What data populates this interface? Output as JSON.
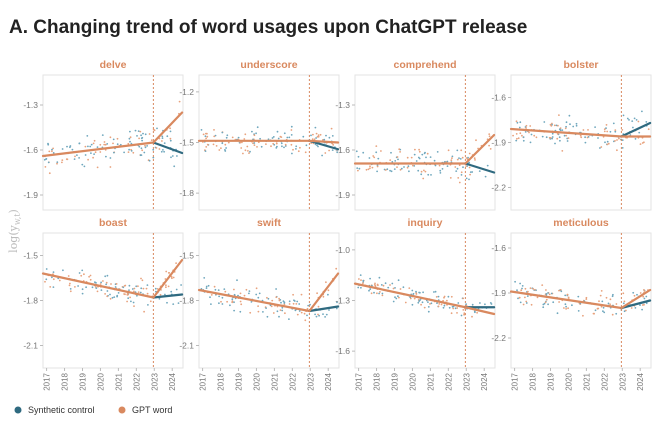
{
  "title": "A. Changing trend of word usages upon ChatGPT release",
  "legend": {
    "synthetic_label": "Synthetic control",
    "gpt_label": "GPT word"
  },
  "colors": {
    "synthetic": "#2f6a80",
    "gpt": "#d9895f",
    "dot_synthetic": "#6fa7bd",
    "dot_gpt": "#e8a27d"
  },
  "chart_data": {
    "type": "scatter+line",
    "ylabel": "log(y_w,t)",
    "ylabel_base": "log(y",
    "ylabel_sub": "w,t",
    "ylabel_close": ")",
    "x_ticks": [
      "2017",
      "2018",
      "2019",
      "2020",
      "2021",
      "2022",
      "2023",
      "2024"
    ],
    "xlim": [
      2016.8,
      2024.6
    ],
    "release": 2022.95,
    "panels": [
      {
        "word": "delve",
        "ylim": [
          -2.0,
          -1.1
        ],
        "ticks": [
          -1.3,
          -1.6,
          -1.9
        ],
        "tick_labels": [
          "-1.3",
          "-1.6",
          "-1.9"
        ],
        "pre": [
          [
            2016.8,
            -1.64
          ],
          [
            2022.95,
            -1.55
          ]
        ],
        "gpt_post": [
          [
            2022.95,
            -1.55
          ],
          [
            2024.55,
            -1.35
          ]
        ],
        "syn_post": [
          [
            2022.95,
            -1.55
          ],
          [
            2024.55,
            -1.62
          ]
        ],
        "spread": 0.07
      },
      {
        "word": "underscore",
        "ylim": [
          -1.9,
          -1.1
        ],
        "ticks": [
          -1.2,
          -1.5,
          -1.8
        ],
        "tick_labels": [
          "-1.2",
          "-1.5",
          "-1.8"
        ],
        "pre": [
          [
            2016.8,
            -1.49
          ],
          [
            2022.95,
            -1.49
          ]
        ],
        "gpt_post": [
          [
            2022.95,
            -1.49
          ],
          [
            2024.55,
            -1.5
          ]
        ],
        "syn_post": [
          [
            2022.95,
            -1.49
          ],
          [
            2024.55,
            -1.54
          ]
        ],
        "spread": 0.05
      },
      {
        "word": "comprehend",
        "ylim": [
          -2.0,
          -1.1
        ],
        "ticks": [
          -1.3,
          -1.6,
          -1.9
        ],
        "tick_labels": [
          "-1.3",
          "-1.6",
          "-1.9"
        ],
        "pre": [
          [
            2016.8,
            -1.69
          ],
          [
            2022.95,
            -1.69
          ]
        ],
        "gpt_post": [
          [
            2022.95,
            -1.69
          ],
          [
            2024.55,
            -1.5
          ]
        ],
        "syn_post": [
          [
            2022.95,
            -1.69
          ],
          [
            2024.55,
            -1.75
          ]
        ],
        "spread": 0.07
      },
      {
        "word": "bolster",
        "ylim": [
          -2.35,
          -1.45
        ],
        "ticks": [
          -1.6,
          -1.9,
          -2.2
        ],
        "tick_labels": [
          "-1.6",
          "-1.9",
          "-2.2"
        ],
        "pre": [
          [
            2016.8,
            -1.81
          ],
          [
            2022.95,
            -1.86
          ]
        ],
        "gpt_post": [
          [
            2022.95,
            -1.86
          ],
          [
            2024.55,
            -1.86
          ]
        ],
        "syn_post": [
          [
            2022.95,
            -1.86
          ],
          [
            2024.55,
            -1.77
          ]
        ],
        "spread": 0.07
      },
      {
        "word": "boast",
        "ylim": [
          -2.25,
          -1.35
        ],
        "ticks": [
          -1.5,
          -1.8,
          -2.1
        ],
        "tick_labels": [
          "-1.5",
          "-1.8",
          "-2.1"
        ],
        "pre": [
          [
            2016.8,
            -1.62
          ],
          [
            2022.95,
            -1.78
          ]
        ],
        "gpt_post": [
          [
            2022.95,
            -1.78
          ],
          [
            2024.55,
            -1.53
          ]
        ],
        "syn_post": [
          [
            2022.95,
            -1.78
          ],
          [
            2024.55,
            -1.76
          ]
        ],
        "spread": 0.06
      },
      {
        "word": "swift",
        "ylim": [
          -2.25,
          -1.35
        ],
        "ticks": [
          -1.5,
          -1.8,
          -2.1
        ],
        "tick_labels": [
          "-1.5",
          "-1.8",
          "-2.1"
        ],
        "pre": [
          [
            2016.8,
            -1.73
          ],
          [
            2022.95,
            -1.87
          ]
        ],
        "gpt_post": [
          [
            2022.95,
            -1.87
          ],
          [
            2024.55,
            -1.62
          ]
        ],
        "syn_post": [
          [
            2022.95,
            -1.87
          ],
          [
            2024.55,
            -1.84
          ]
        ],
        "spread": 0.06
      },
      {
        "word": "inquiry",
        "ylim": [
          -1.7,
          -0.9
        ],
        "ticks": [
          -1.0,
          -1.3,
          -1.6
        ],
        "tick_labels": [
          "-1.0",
          "-1.3",
          "-1.6"
        ],
        "pre": [
          [
            2016.8,
            -1.2
          ],
          [
            2022.95,
            -1.34
          ]
        ],
        "gpt_post": [
          [
            2022.95,
            -1.34
          ],
          [
            2024.55,
            -1.38
          ]
        ],
        "syn_post": [
          [
            2022.95,
            -1.34
          ],
          [
            2024.55,
            -1.34
          ]
        ],
        "spread": 0.04
      },
      {
        "word": "meticulous",
        "ylim": [
          -2.4,
          -1.5
        ],
        "ticks": [
          -1.6,
          -1.9,
          -2.2
        ],
        "tick_labels": [
          "-1.6",
          "-1.9",
          "-2.2"
        ],
        "pre": [
          [
            2016.8,
            -1.89
          ],
          [
            2022.95,
            -2.0
          ]
        ],
        "gpt_post": [
          [
            2022.95,
            -2.0
          ],
          [
            2024.55,
            -1.88
          ]
        ],
        "syn_post": [
          [
            2022.95,
            -2.0
          ],
          [
            2024.55,
            -1.95
          ]
        ],
        "spread": 0.06
      }
    ]
  }
}
